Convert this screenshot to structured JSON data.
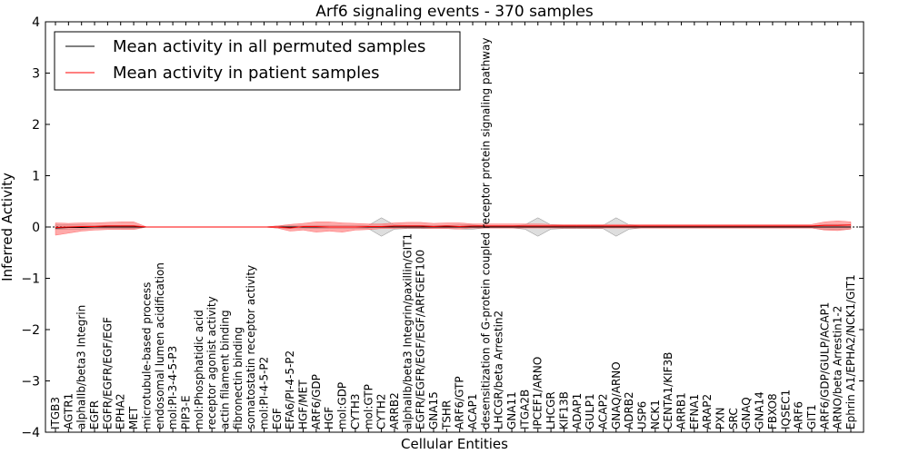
{
  "chart_data": {
    "type": "line",
    "title": "Arf6 signaling events - 370 samples",
    "xlabel": "Cellular Entities",
    "ylabel": "Inferred Activity",
    "ylim": [
      -4,
      4
    ],
    "yticks": [
      4,
      3,
      2,
      1,
      0,
      -1,
      -2,
      -3,
      -4
    ],
    "ytick_labels": [
      "4",
      "3",
      "2",
      "1",
      "0",
      "−1",
      "−2",
      "−3",
      "−4"
    ],
    "categories": [
      "ITGB3",
      "AGTR1",
      "alphaIIb/beta3 Integrin",
      "EGFR",
      "EGFR/EGFR/EGF/EGF",
      "EPHA2",
      "MET",
      "microtubule-based process",
      "endosomal lumen acidification",
      "mol:PI-3-4-5-P3",
      "PIP3-E",
      "mol:Phosphatidic acid",
      "receptor agonist activity",
      "actin filament binding",
      "fibronectin binding",
      "somatostatin receptor activity",
      "mol:PI-4-5-P2",
      "EGF",
      "EFA6/PI-4-5-P2",
      "HGF/MET",
      "ARF6/GDP",
      "HGF",
      "mol:GDP",
      "CYTH3",
      "mol:GTP",
      "CYTH2",
      "ARRB2",
      "alphaIIb/beta3 Integrin/paxillin/GIT1",
      "EGFR/EGFR/EGF/EGF/ARFGEF100",
      "GNA15",
      "TSHR",
      "ARF6/GTP",
      "ACAP1",
      "desensitization of G-protein coupled receptor protein signaling pathway",
      "LHCGR/beta Arrestin2",
      "GNA11",
      "ITGA2B",
      "IPCEF1/ARNO",
      "LHCGR",
      "KIF13B",
      "ADAP1",
      "GULP1",
      "ACAP2",
      "GNAQ/ARNO",
      "ADRB2",
      "USP6",
      "NCK1",
      "CENTA1/KIF3B",
      "ARRB1",
      "EFNA1",
      "ARAP2",
      "PXN",
      "SRC",
      "GNAQ",
      "GNA14",
      "FBXO8",
      "IQSEC1",
      "ARF6",
      "GIT1",
      "ARF6/GDP/GULP/ACAP1",
      "ARNO/beta Arrestin1-2",
      "Ephrin A1/EPHA2/NCK1/GIT1"
    ],
    "series": [
      {
        "name": "Mean activity in all permuted samples",
        "color": "#000000",
        "values": [
          -0.02,
          -0.01,
          -0.01,
          0.0,
          0.0,
          0.0,
          0.0,
          0.0,
          0.0,
          0.0,
          0.0,
          0.0,
          0.0,
          0.0,
          0.0,
          0.0,
          0.0,
          0.0,
          0.0,
          0.0,
          0.0,
          0.0,
          0.0,
          0.0,
          0.0,
          0.0,
          0.0,
          0.0,
          0.0,
          0.0,
          0.0,
          0.0,
          0.0,
          0.0,
          0.0,
          0.0,
          0.0,
          0.0,
          0.0,
          0.0,
          0.0,
          0.0,
          0.0,
          0.0,
          0.0,
          0.0,
          0.0,
          0.0,
          0.0,
          0.0,
          0.0,
          0.0,
          0.0,
          0.0,
          0.0,
          0.0,
          0.0,
          0.0,
          0.0,
          0.0,
          0.0,
          0.0
        ],
        "lower": [
          -0.05,
          -0.04,
          -0.04,
          -0.03,
          -0.03,
          -0.03,
          -0.03,
          0.0,
          0.0,
          0.0,
          0.0,
          0.0,
          0.0,
          0.0,
          0.0,
          0.0,
          0.0,
          -0.02,
          -0.02,
          -0.02,
          -0.03,
          -0.03,
          -0.03,
          -0.03,
          -0.03,
          -0.18,
          -0.04,
          -0.03,
          -0.03,
          -0.03,
          -0.03,
          -0.04,
          -0.04,
          -0.02,
          -0.02,
          -0.02,
          -0.04,
          -0.18,
          -0.04,
          -0.03,
          -0.03,
          -0.03,
          -0.03,
          -0.18,
          -0.04,
          -0.02,
          -0.02,
          -0.02,
          -0.02,
          -0.02,
          -0.02,
          -0.02,
          -0.02,
          -0.02,
          -0.02,
          -0.02,
          -0.02,
          -0.02,
          -0.02,
          -0.05,
          -0.05,
          -0.04
        ],
        "upper": [
          0.04,
          0.04,
          0.04,
          0.03,
          0.03,
          0.03,
          0.03,
          0.0,
          0.0,
          0.0,
          0.0,
          0.0,
          0.0,
          0.0,
          0.0,
          0.0,
          0.0,
          0.02,
          0.02,
          0.02,
          0.03,
          0.03,
          0.03,
          0.03,
          0.03,
          0.18,
          0.04,
          0.03,
          0.03,
          0.03,
          0.03,
          0.04,
          0.04,
          0.02,
          0.02,
          0.02,
          0.04,
          0.18,
          0.04,
          0.03,
          0.03,
          0.03,
          0.03,
          0.18,
          0.04,
          0.02,
          0.02,
          0.02,
          0.02,
          0.02,
          0.02,
          0.02,
          0.02,
          0.02,
          0.02,
          0.02,
          0.02,
          0.02,
          0.02,
          0.05,
          0.05,
          0.04
        ]
      },
      {
        "name": "Mean activity in patient samples",
        "color": "#ff0000",
        "values": [
          -0.01,
          0.0,
          0.01,
          0.01,
          0.02,
          0.02,
          0.02,
          0.0,
          0.0,
          0.0,
          0.0,
          0.0,
          0.0,
          0.0,
          0.0,
          0.0,
          0.0,
          0.0,
          -0.02,
          0.01,
          0.01,
          0.0,
          0.0,
          0.0,
          0.01,
          0.01,
          0.02,
          0.02,
          0.02,
          0.01,
          0.02,
          0.01,
          0.02,
          0.02,
          0.02,
          0.02,
          0.02,
          0.02,
          0.02,
          0.02,
          0.02,
          0.02,
          0.02,
          0.02,
          0.02,
          0.02,
          0.02,
          0.02,
          0.02,
          0.02,
          0.02,
          0.02,
          0.02,
          0.02,
          0.02,
          0.02,
          0.02,
          0.02,
          0.02,
          0.03,
          0.03,
          0.04
        ],
        "lower": [
          -0.16,
          -0.12,
          -0.08,
          -0.06,
          -0.05,
          -0.05,
          -0.05,
          0.0,
          0.0,
          0.0,
          0.0,
          0.0,
          0.0,
          0.0,
          0.0,
          0.0,
          0.0,
          -0.02,
          -0.08,
          -0.06,
          -0.1,
          -0.08,
          -0.1,
          -0.06,
          -0.05,
          -0.03,
          -0.03,
          -0.02,
          -0.02,
          -0.03,
          -0.03,
          -0.04,
          -0.02,
          -0.02,
          -0.02,
          -0.02,
          -0.02,
          -0.02,
          -0.02,
          -0.02,
          -0.02,
          -0.02,
          -0.02,
          -0.02,
          -0.02,
          -0.02,
          -0.02,
          -0.02,
          -0.02,
          -0.02,
          -0.02,
          -0.02,
          -0.02,
          -0.02,
          -0.02,
          -0.02,
          -0.02,
          -0.02,
          -0.02,
          -0.06,
          -0.07,
          -0.04
        ],
        "upper": [
          0.08,
          0.07,
          0.08,
          0.08,
          0.09,
          0.1,
          0.1,
          0.0,
          0.0,
          0.0,
          0.0,
          0.0,
          0.0,
          0.0,
          0.0,
          0.0,
          0.0,
          0.02,
          0.05,
          0.07,
          0.1,
          0.1,
          0.08,
          0.07,
          0.06,
          0.06,
          0.08,
          0.09,
          0.09,
          0.07,
          0.08,
          0.08,
          0.06,
          0.06,
          0.06,
          0.06,
          0.06,
          0.06,
          0.05,
          0.05,
          0.05,
          0.05,
          0.05,
          0.05,
          0.05,
          0.05,
          0.05,
          0.05,
          0.05,
          0.05,
          0.05,
          0.05,
          0.05,
          0.05,
          0.05,
          0.05,
          0.05,
          0.05,
          0.05,
          0.1,
          0.12,
          0.1
        ]
      }
    ],
    "zero_line": 0,
    "legend_position": "top-left",
    "grid": false
  }
}
